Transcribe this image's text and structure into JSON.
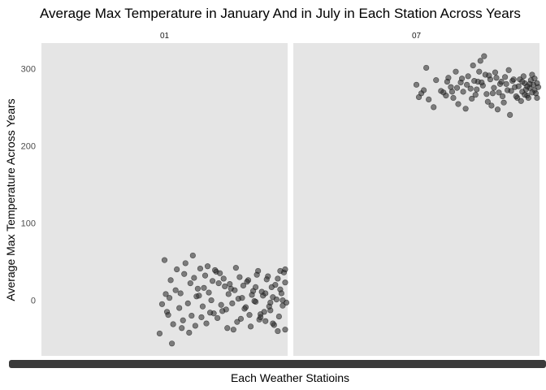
{
  "chart_data": {
    "type": "scatter",
    "title": "Average Max Temperature in January And in July in Each Station Across Years",
    "xlabel": "Each Weather Statioins",
    "ylabel": "Average Max Temperature Across Years",
    "ylim": [
      -72,
      333
    ],
    "y_ticks": [
      0,
      100,
      200,
      300
    ],
    "y_tick_labels": [
      "0",
      "100",
      "200",
      "300"
    ],
    "grid": false,
    "panel_background": "#e5e5e5",
    "point_color": "#333333",
    "facets": [
      {
        "label": "01",
        "points": [
          [
            0.5,
            52
          ],
          [
            0.48,
            -43
          ],
          [
            0.52,
            3
          ],
          [
            0.49,
            -5
          ],
          [
            0.51,
            -15
          ],
          [
            0.55,
            40
          ],
          [
            0.56,
            -10
          ],
          [
            0.58,
            34
          ],
          [
            0.6,
            -42
          ],
          [
            0.62,
            29
          ],
          [
            0.63,
            5
          ],
          [
            0.65,
            -22
          ],
          [
            0.66,
            16
          ],
          [
            0.67,
            -30
          ],
          [
            0.68,
            10
          ],
          [
            0.69,
            0
          ],
          [
            0.7,
            -17
          ],
          [
            0.71,
            37
          ],
          [
            0.72,
            22
          ],
          [
            0.73,
            -6
          ],
          [
            0.74,
            28
          ],
          [
            0.75,
            -12
          ],
          [
            0.76,
            8
          ],
          [
            0.77,
            15
          ],
          [
            0.78,
            -38
          ],
          [
            0.79,
            42
          ],
          [
            0.8,
            2
          ],
          [
            0.81,
            -24
          ],
          [
            0.82,
            19
          ],
          [
            0.83,
            -9
          ],
          [
            0.84,
            26
          ],
          [
            0.85,
            -34
          ],
          [
            0.86,
            12
          ],
          [
            0.87,
            -2
          ],
          [
            0.88,
            38
          ],
          [
            0.89,
            -18
          ],
          [
            0.9,
            6
          ],
          [
            0.91,
            -27
          ],
          [
            0.92,
            31
          ],
          [
            0.93,
            -13
          ],
          [
            0.94,
            4
          ],
          [
            0.95,
            20
          ],
          [
            0.96,
            -40
          ],
          [
            0.97,
            14
          ],
          [
            0.98,
            -7
          ],
          [
            0.99,
            23
          ],
          [
            0.995,
            -3
          ],
          [
            0.985,
            36
          ],
          [
            0.975,
            9
          ],
          [
            0.965,
            -21
          ],
          [
            0.955,
            1
          ],
          [
            0.945,
            -32
          ],
          [
            0.935,
            17
          ],
          [
            0.925,
            -8
          ],
          [
            0.915,
            27
          ],
          [
            0.905,
            -15
          ],
          [
            0.895,
            11
          ],
          [
            0.885,
            -25
          ],
          [
            0.875,
            33
          ],
          [
            0.865,
            -1
          ],
          [
            0.855,
            7
          ],
          [
            0.845,
            -19
          ],
          [
            0.835,
            24
          ],
          [
            0.825,
            -11
          ],
          [
            0.815,
            3
          ],
          [
            0.805,
            30
          ],
          [
            0.795,
            -28
          ],
          [
            0.785,
            13
          ],
          [
            0.775,
            -4
          ],
          [
            0.765,
            21
          ],
          [
            0.755,
            -36
          ],
          [
            0.745,
            18
          ],
          [
            0.735,
            -14
          ],
          [
            0.725,
            35
          ],
          [
            0.715,
            -23
          ],
          [
            0.705,
            39
          ],
          [
            0.695,
            25
          ],
          [
            0.685,
            -16
          ],
          [
            0.675,
            44
          ],
          [
            0.665,
            32
          ],
          [
            0.655,
            -8
          ],
          [
            0.645,
            41
          ],
          [
            0.635,
            15
          ],
          [
            0.625,
            -33
          ],
          [
            0.615,
            58
          ],
          [
            0.605,
            22
          ],
          [
            0.595,
            -4
          ],
          [
            0.585,
            48
          ],
          [
            0.575,
            -26
          ],
          [
            0.565,
            9
          ],
          [
            0.545,
            13
          ],
          [
            0.535,
            -31
          ],
          [
            0.525,
            26
          ],
          [
            0.515,
            -19
          ],
          [
            0.505,
            8
          ],
          [
            0.53,
            -56
          ],
          [
            0.57,
            -36
          ],
          [
            0.61,
            -20
          ],
          [
            0.64,
            6
          ],
          [
            0.99,
            40
          ],
          [
            0.97,
            38
          ],
          [
            0.93,
            -3
          ],
          [
            0.91,
            9
          ],
          [
            0.89,
            -22
          ],
          [
            0.87,
            17
          ],
          [
            0.99,
            -38
          ],
          [
            0.98,
            0
          ],
          [
            0.96,
            28
          ],
          [
            0.94,
            -30
          ]
        ]
      },
      {
        "label": "07",
        "points": [
          [
            0.5,
            279
          ],
          [
            0.51,
            263
          ],
          [
            0.52,
            268
          ],
          [
            0.53,
            272
          ],
          [
            0.54,
            301
          ],
          [
            0.55,
            260
          ],
          [
            0.57,
            250
          ],
          [
            0.58,
            285
          ],
          [
            0.6,
            271
          ],
          [
            0.61,
            269
          ],
          [
            0.62,
            265
          ],
          [
            0.63,
            288
          ],
          [
            0.64,
            276
          ],
          [
            0.65,
            262
          ],
          [
            0.66,
            296
          ],
          [
            0.67,
            254
          ],
          [
            0.68,
            282
          ],
          [
            0.69,
            270
          ],
          [
            0.7,
            248
          ],
          [
            0.71,
            290
          ],
          [
            0.72,
            274
          ],
          [
            0.73,
            304
          ],
          [
            0.74,
            266
          ],
          [
            0.75,
            283
          ],
          [
            0.76,
            310
          ],
          [
            0.77,
            278
          ],
          [
            0.78,
            292
          ],
          [
            0.79,
            257
          ],
          [
            0.8,
            286
          ],
          [
            0.81,
            268
          ],
          [
            0.82,
            295
          ],
          [
            0.83,
            247
          ],
          [
            0.84,
            280
          ],
          [
            0.85,
            264
          ],
          [
            0.86,
            289
          ],
          [
            0.87,
            272
          ],
          [
            0.88,
            240
          ],
          [
            0.89,
            284
          ],
          [
            0.9,
            276
          ],
          [
            0.91,
            262
          ],
          [
            0.92,
            286
          ],
          [
            0.93,
            270
          ],
          [
            0.94,
            281
          ],
          [
            0.95,
            265
          ],
          [
            0.96,
            275
          ],
          [
            0.97,
            292
          ],
          [
            0.98,
            272
          ],
          [
            0.99,
            281
          ],
          [
            0.985,
            268
          ],
          [
            0.975,
            279
          ],
          [
            0.965,
            285
          ],
          [
            0.955,
            262
          ],
          [
            0.945,
            273
          ],
          [
            0.935,
            290
          ],
          [
            0.925,
            258
          ],
          [
            0.915,
            277
          ],
          [
            0.905,
            264
          ],
          [
            0.895,
            286
          ],
          [
            0.885,
            271
          ],
          [
            0.875,
            298
          ],
          [
            0.865,
            280
          ],
          [
            0.855,
            256
          ],
          [
            0.845,
            283
          ],
          [
            0.835,
            269
          ],
          [
            0.825,
            288
          ],
          [
            0.815,
            275
          ],
          [
            0.805,
            252
          ],
          [
            0.795,
            291
          ],
          [
            0.785,
            267
          ],
          [
            0.775,
            316
          ],
          [
            0.765,
            282
          ],
          [
            0.755,
            296
          ],
          [
            0.745,
            273
          ],
          [
            0.735,
            284
          ],
          [
            0.725,
            261
          ],
          [
            0.705,
            279
          ],
          [
            0.685,
            287
          ],
          [
            0.665,
            275
          ],
          [
            0.645,
            270
          ],
          [
            0.625,
            283
          ],
          [
            0.995,
            276
          ],
          [
            0.99,
            262
          ],
          [
            0.98,
            287
          ],
          [
            0.97,
            269
          ],
          [
            0.96,
            280
          ],
          [
            0.95,
            277
          ],
          [
            0.94,
            266
          ],
          [
            0.93,
            283
          ]
        ]
      }
    ]
  }
}
